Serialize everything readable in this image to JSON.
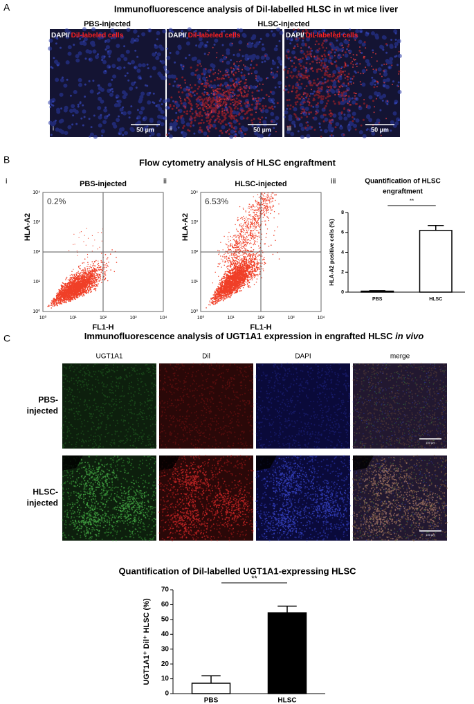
{
  "panel_a": {
    "letter": "A",
    "title": "Immunofluorescence analysis of Dil-labelled HLSC in wt mice liver",
    "group_labels": [
      "PBS-injected",
      "HLSC-injected"
    ],
    "stain_label": {
      "dapi": "DAPI/",
      "dil": "Dil-labeled cells"
    },
    "images": [
      {
        "numeral": "i",
        "scale": "50 µm"
      },
      {
        "numeral": "ii",
        "scale": "50 µm"
      },
      {
        "numeral": "iii",
        "scale": "50 µm"
      }
    ]
  },
  "panel_b": {
    "letter": "B",
    "title": "Flow cytometry analysis of HLSC engraftment",
    "plots": [
      {
        "numeral": "i",
        "title": "PBS-injected",
        "percent": "0.2%"
      },
      {
        "numeral": "ii",
        "title": "HLSC-injected",
        "percent": "6.53%"
      }
    ],
    "tick_labels": [
      "10⁰",
      "10¹",
      "10²",
      "10³",
      "10⁴"
    ],
    "x_label": "FL1-H",
    "y_label": "HLA-A2",
    "chart_numeral": "iii"
  },
  "panel_c": {
    "letter": "C",
    "title": "Immunofluorescence analysis of UGT1A1 expression in engrafted HLSC ",
    "title_italic": "in vivo",
    "columns": [
      "UGT1A1",
      "Dil",
      "DAPI",
      "merge"
    ],
    "rows": [
      [
        "PBS-",
        "injected"
      ],
      [
        "HLSC-",
        "injected"
      ]
    ],
    "scale": "100 µm"
  },
  "chart_data": [
    {
      "type": "bar",
      "title": [
        "Quantification of HLSC",
        "engraftment"
      ],
      "y_label": "HLA-A2  positive cells (%)",
      "categories": [
        "PBS",
        "HLSC"
      ],
      "values": [
        0.1,
        6.2
      ],
      "errors": [
        0.05,
        0.5
      ],
      "colors": [
        "#ffffff",
        "#ffffff"
      ],
      "ylim": [
        0,
        8
      ],
      "yticks": [
        0,
        2,
        4,
        6,
        8
      ],
      "annotation": "**"
    },
    {
      "type": "bar",
      "title": [
        "Quantification of Dil-labelled UGT1A1-expressing HLSC"
      ],
      "y_label": "UGT1A1⁺ Dil⁺ HLSC (%)",
      "categories": [
        "PBS",
        "HLSC"
      ],
      "values": [
        7,
        54.5
      ],
      "errors": [
        5,
        4.5
      ],
      "colors": [
        "#ffffff",
        "#000000"
      ],
      "ylim": [
        0,
        70
      ],
      "yticks": [
        0,
        10,
        20,
        30,
        40,
        50,
        60,
        70
      ],
      "annotation": "**"
    }
  ]
}
